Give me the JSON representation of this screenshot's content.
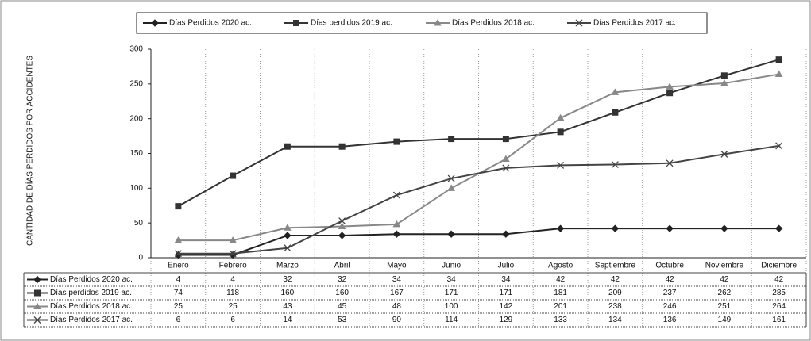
{
  "chart_data": {
    "type": "line",
    "y_label": "CANTIDAD DE DÍAS PERDIDOS POR ACCIDENTES",
    "categories": [
      "Enero",
      "Febrero",
      "Marzo",
      "Abril",
      "Mayo",
      "Junio",
      "Julio",
      "Agosto",
      "Septiembre",
      "Octubre",
      "Noviembre",
      "Diciembre"
    ],
    "series": [
      {
        "name": "Días Perdidos 2020 ac.",
        "color": "#222222",
        "marker": "diamond",
        "values": [
          4,
          4,
          32,
          32,
          34,
          34,
          34,
          42,
          42,
          42,
          42,
          42
        ]
      },
      {
        "name": "Días perdidos 2019 ac.",
        "color": "#333333",
        "marker": "square",
        "values": [
          74,
          118,
          160,
          160,
          167,
          171,
          171,
          181,
          209,
          237,
          262,
          285
        ]
      },
      {
        "name": "Días Perdidos 2018 ac.",
        "color": "#888888",
        "marker": "triangle",
        "values": [
          25,
          25,
          43,
          45,
          48,
          100,
          142,
          201,
          238,
          246,
          251,
          264
        ]
      },
      {
        "name": "Días Perdidos 2017 ac.",
        "color": "#444444",
        "marker": "x",
        "values": [
          6,
          6,
          14,
          53,
          90,
          114,
          129,
          133,
          134,
          136,
          149,
          161
        ]
      }
    ],
    "ylim": [
      0,
      300
    ],
    "yticks": [
      0,
      50,
      100,
      150,
      200,
      250,
      300
    ],
    "legend": "top"
  }
}
